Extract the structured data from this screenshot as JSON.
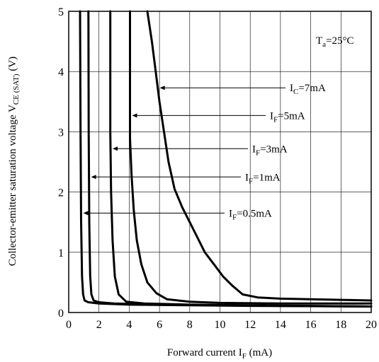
{
  "chart_data": {
    "type": "line",
    "x_axis": {
      "label_main": "Forward current  I",
      "label_sub": "F",
      "label_unit": " (mA)",
      "range": [
        0,
        20
      ],
      "ticks": [
        0,
        2,
        4,
        6,
        8,
        10,
        12,
        14,
        16,
        18,
        20
      ]
    },
    "y_axis": {
      "label_main": "Collector-emitter saturation voltage  V",
      "label_sub": "CE (SAT)",
      "label_unit": " (V)",
      "range": [
        0,
        5
      ],
      "ticks": [
        0,
        1,
        2,
        3,
        4,
        5
      ]
    },
    "grid": true,
    "condition": {
      "main": "T",
      "sub": "a",
      "rest": "=25°C"
    },
    "series": [
      {
        "name_main": "I",
        "name_sub": "F",
        "name_rest": "=0.5mA",
        "label_y": 1.65,
        "points": [
          [
            0.75,
            5
          ],
          [
            0.78,
            3
          ],
          [
            0.82,
            1.5
          ],
          [
            0.88,
            0.6
          ],
          [
            0.95,
            0.3
          ],
          [
            1.05,
            0.2
          ],
          [
            1.3,
            0.17
          ],
          [
            2,
            0.15
          ],
          [
            4,
            0.13
          ],
          [
            8,
            0.12
          ],
          [
            12,
            0.11
          ],
          [
            20,
            0.1
          ]
        ]
      },
      {
        "name_main": "I",
        "name_sub": "F",
        "name_rest": "=1mA",
        "label_y": 2.25,
        "points": [
          [
            1.3,
            5
          ],
          [
            1.32,
            3
          ],
          [
            1.36,
            1.5
          ],
          [
            1.42,
            0.6
          ],
          [
            1.5,
            0.3
          ],
          [
            1.65,
            0.2
          ],
          [
            2,
            0.17
          ],
          [
            3,
            0.15
          ],
          [
            6,
            0.13
          ],
          [
            10,
            0.12
          ],
          [
            14,
            0.11
          ],
          [
            20,
            0.1
          ]
        ]
      },
      {
        "name_main": "I",
        "name_sub": "F",
        "name_rest": "=3mA",
        "label_y": 2.72,
        "points": [
          [
            2.75,
            5
          ],
          [
            2.75,
            4
          ],
          [
            2.75,
            3
          ],
          [
            2.8,
            2
          ],
          [
            2.9,
            1.2
          ],
          [
            3.05,
            0.6
          ],
          [
            3.3,
            0.3
          ],
          [
            3.8,
            0.18
          ],
          [
            5,
            0.15
          ],
          [
            8,
            0.13
          ],
          [
            12,
            0.12
          ],
          [
            16,
            0.11
          ],
          [
            20,
            0.1
          ]
        ]
      },
      {
        "name_main": "I",
        "name_sub": "F",
        "name_rest": "=5mA",
        "label_y": 3.27,
        "points": [
          [
            4.05,
            5
          ],
          [
            4.05,
            4
          ],
          [
            4.05,
            3.3
          ],
          [
            4.05,
            2.9
          ],
          [
            4.15,
            2.3
          ],
          [
            4.3,
            1.7
          ],
          [
            4.5,
            1.2
          ],
          [
            4.8,
            0.8
          ],
          [
            5.2,
            0.5
          ],
          [
            5.8,
            0.32
          ],
          [
            6.5,
            0.22
          ],
          [
            8,
            0.18
          ],
          [
            10,
            0.16
          ],
          [
            14,
            0.15
          ],
          [
            20,
            0.15
          ]
        ]
      },
      {
        "name_main": "I",
        "name_sub": "C",
        "name_rest": "=7mA",
        "label_y": 3.73,
        "points": [
          [
            5.2,
            5
          ],
          [
            5.5,
            4.5
          ],
          [
            5.75,
            4
          ],
          [
            6,
            3.5
          ],
          [
            6.3,
            3.0
          ],
          [
            6.6,
            2.5
          ],
          [
            7,
            2.05
          ],
          [
            7.5,
            1.75
          ],
          [
            8,
            1.5
          ],
          [
            8.5,
            1.25
          ],
          [
            9,
            1.0
          ],
          [
            9.6,
            0.8
          ],
          [
            10.2,
            0.6
          ],
          [
            10.8,
            0.45
          ],
          [
            11.5,
            0.3
          ],
          [
            12.5,
            0.25
          ],
          [
            14,
            0.23
          ],
          [
            16,
            0.22
          ],
          [
            18,
            0.21
          ],
          [
            20,
            0.2
          ]
        ]
      }
    ]
  }
}
